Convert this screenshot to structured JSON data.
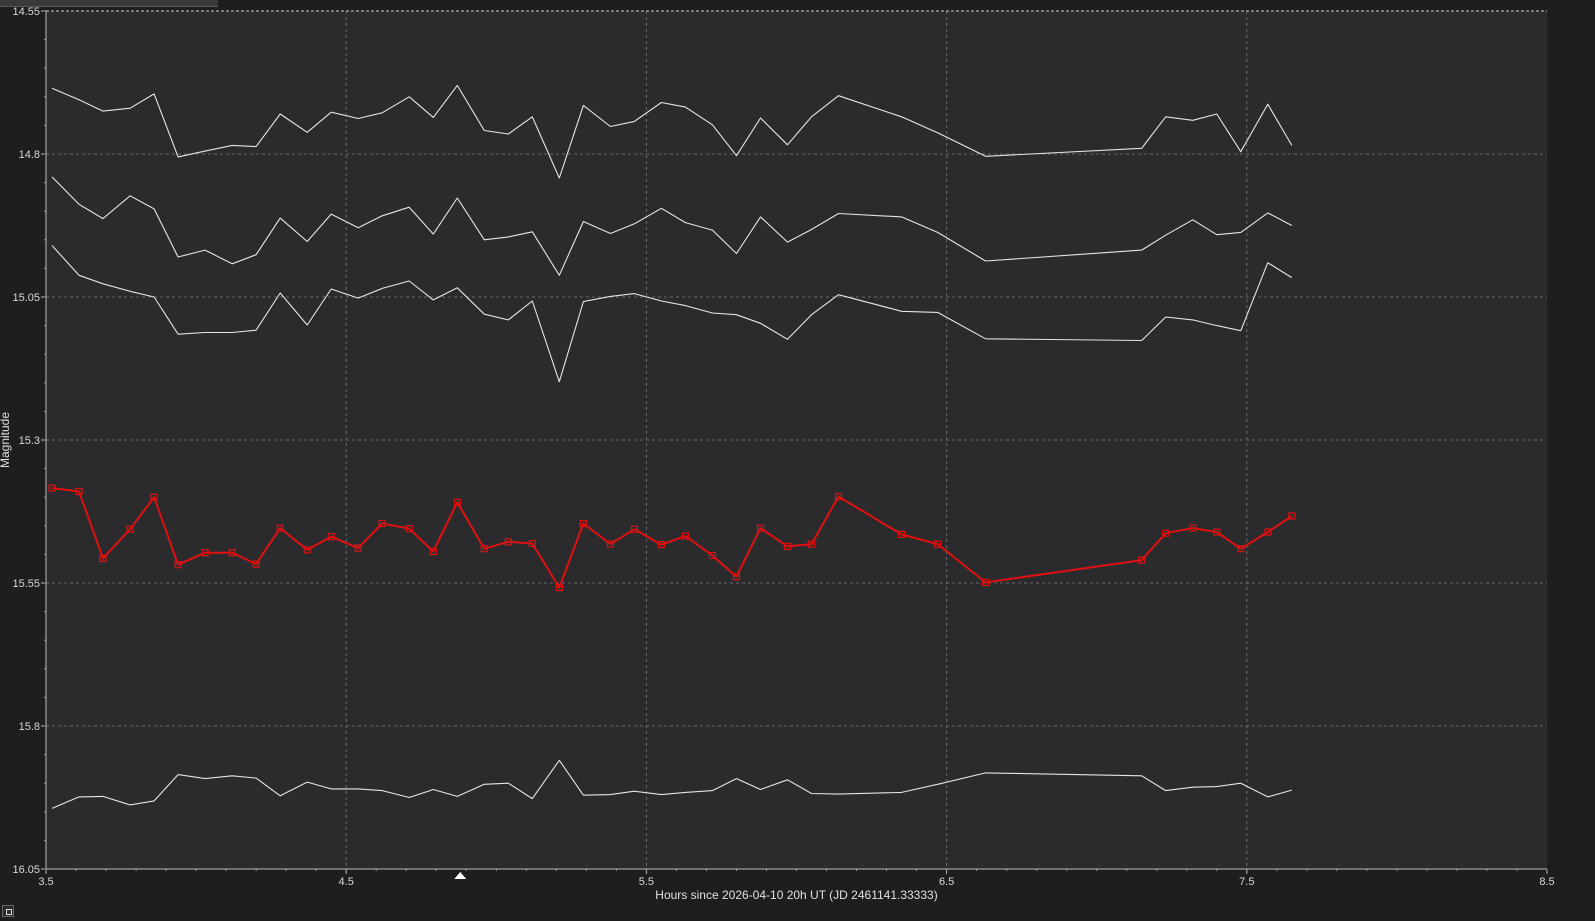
{
  "chart_data": {
    "type": "line",
    "title": "",
    "xlabel": "Hours since 2026-04-10 20h UT (JD 2461141.33333)",
    "ylabel": "Magnitude",
    "xlim": [
      3.5,
      8.5
    ],
    "ylim": [
      14.55,
      16.05
    ],
    "y_inverted": true,
    "grid": true,
    "x_ticks": [
      "3.5",
      "4.5",
      "5.5",
      "6.5",
      "7.5",
      "8.5"
    ],
    "y_ticks": [
      "14.55",
      "14.8",
      "15.05",
      "15.3",
      "15.55",
      "15.8",
      "16.05"
    ],
    "marker_position_x": 4.88,
    "colors": {
      "background": "#2b2b2e",
      "grid": "#6a6a6a",
      "target": "#e01010",
      "comparison": "#e6e6e6"
    },
    "series": [
      {
        "role": "comparison-1",
        "x": [
          3.52,
          3.61,
          3.69,
          3.78,
          3.86,
          3.94,
          4.03,
          4.12,
          4.2,
          4.28,
          4.37,
          4.45,
          4.54,
          4.62,
          4.71,
          4.79,
          4.87,
          4.96,
          5.04,
          5.12,
          5.21,
          5.29,
          5.38,
          5.46,
          5.55,
          5.63,
          5.72,
          5.8,
          5.88,
          5.97,
          6.05,
          6.14,
          6.35,
          6.47,
          6.63,
          7.15,
          7.23,
          7.32,
          7.4,
          7.48,
          7.57,
          7.65
        ],
        "values": [
          14.685,
          14.705,
          14.725,
          14.72,
          14.695,
          14.805,
          14.795,
          14.785,
          14.787,
          14.73,
          14.762,
          14.727,
          14.738,
          14.728,
          14.7,
          14.736,
          14.68,
          14.759,
          14.765,
          14.735,
          14.842,
          14.715,
          14.752,
          14.743,
          14.71,
          14.718,
          14.749,
          14.803,
          14.737,
          14.784,
          14.735,
          14.698,
          14.735,
          14.763,
          14.804,
          14.79,
          14.735,
          14.741,
          14.73,
          14.796,
          14.713,
          14.785
        ]
      },
      {
        "role": "comparison-2",
        "x": [
          3.52,
          3.61,
          3.69,
          3.78,
          3.86,
          3.94,
          4.03,
          4.12,
          4.2,
          4.28,
          4.37,
          4.45,
          4.54,
          4.62,
          4.71,
          4.79,
          4.87,
          4.96,
          5.04,
          5.12,
          5.21,
          5.29,
          5.38,
          5.46,
          5.55,
          5.63,
          5.72,
          5.8,
          5.88,
          5.97,
          6.05,
          6.14,
          6.35,
          6.47,
          6.63,
          7.15,
          7.23,
          7.32,
          7.4,
          7.48,
          7.57,
          7.65
        ],
        "values": [
          14.84,
          14.888,
          14.913,
          14.873,
          14.896,
          14.98,
          14.968,
          14.992,
          14.976,
          14.912,
          14.953,
          14.905,
          14.929,
          14.908,
          14.893,
          14.94,
          14.877,
          14.95,
          14.945,
          14.936,
          15.012,
          14.918,
          14.939,
          14.922,
          14.895,
          14.92,
          14.933,
          14.974,
          14.91,
          14.954,
          14.932,
          14.904,
          14.91,
          14.937,
          14.987,
          14.968,
          14.942,
          14.915,
          14.941,
          14.937,
          14.903,
          14.925
        ]
      },
      {
        "role": "comparison-3",
        "x": [
          3.52,
          3.61,
          3.69,
          3.78,
          3.86,
          3.94,
          4.03,
          4.12,
          4.2,
          4.28,
          4.37,
          4.45,
          4.54,
          4.62,
          4.71,
          4.79,
          4.87,
          4.96,
          5.04,
          5.12,
          5.21,
          5.29,
          5.38,
          5.46,
          5.55,
          5.63,
          5.72,
          5.8,
          5.88,
          5.97,
          6.05,
          6.14,
          6.35,
          6.47,
          6.63,
          7.15,
          7.23,
          7.32,
          7.4,
          7.48,
          7.57,
          7.65
        ],
        "values": [
          14.96,
          15.012,
          15.027,
          15.04,
          15.05,
          15.115,
          15.112,
          15.112,
          15.108,
          15.043,
          15.099,
          15.036,
          15.052,
          15.035,
          15.022,
          15.055,
          15.034,
          15.08,
          15.09,
          15.057,
          15.198,
          15.058,
          15.049,
          15.044,
          15.057,
          15.065,
          15.078,
          15.081,
          15.096,
          15.124,
          15.081,
          15.046,
          15.075,
          15.077,
          15.123,
          15.126,
          15.085,
          15.09,
          15.1,
          15.109,
          14.99,
          15.016
        ]
      },
      {
        "role": "target",
        "name": "",
        "markers": true,
        "x": [
          3.52,
          3.61,
          3.69,
          3.78,
          3.86,
          3.94,
          4.03,
          4.12,
          4.2,
          4.28,
          4.37,
          4.45,
          4.54,
          4.62,
          4.71,
          4.79,
          4.87,
          4.96,
          5.04,
          5.12,
          5.21,
          5.29,
          5.38,
          5.46,
          5.55,
          5.63,
          5.72,
          5.8,
          5.88,
          5.97,
          6.05,
          6.14,
          6.35,
          6.47,
          6.63,
          7.15,
          7.23,
          7.32,
          7.4,
          7.48,
          7.57,
          7.65
        ],
        "values": [
          15.384,
          15.39,
          15.507,
          15.456,
          15.4,
          15.518,
          15.497,
          15.497,
          15.517,
          15.454,
          15.492,
          15.469,
          15.489,
          15.446,
          15.455,
          15.495,
          15.409,
          15.49,
          15.478,
          15.481,
          15.558,
          15.446,
          15.482,
          15.456,
          15.483,
          15.468,
          15.502,
          15.539,
          15.454,
          15.486,
          15.482,
          15.399,
          15.465,
          15.482,
          15.549,
          15.51,
          15.463,
          15.454,
          15.461,
          15.49,
          15.461,
          15.433
        ]
      },
      {
        "role": "comparison-4",
        "x": [
          3.52,
          3.61,
          3.69,
          3.78,
          3.86,
          3.94,
          4.03,
          4.12,
          4.2,
          4.28,
          4.37,
          4.45,
          4.54,
          4.62,
          4.71,
          4.79,
          4.87,
          4.96,
          5.04,
          5.12,
          5.21,
          5.29,
          5.38,
          5.46,
          5.55,
          5.63,
          5.72,
          5.8,
          5.88,
          5.97,
          6.05,
          6.14,
          6.35,
          6.47,
          6.63,
          7.15,
          7.23,
          7.32,
          7.4,
          7.48,
          7.57,
          7.65
        ],
        "values": [
          15.944,
          15.924,
          15.923,
          15.938,
          15.931,
          15.885,
          15.892,
          15.887,
          15.891,
          15.922,
          15.898,
          15.91,
          15.91,
          15.913,
          15.925,
          15.911,
          15.923,
          15.902,
          15.9,
          15.927,
          15.86,
          15.921,
          15.92,
          15.914,
          15.92,
          15.916,
          15.913,
          15.892,
          15.911,
          15.894,
          15.918,
          15.919,
          15.916,
          15.902,
          15.882,
          15.887,
          15.913,
          15.907,
          15.906,
          15.9,
          15.924,
          15.912
        ]
      }
    ]
  },
  "controls": {
    "corner_button": "restore-icon",
    "marker_icon": "triangle-up-icon"
  }
}
